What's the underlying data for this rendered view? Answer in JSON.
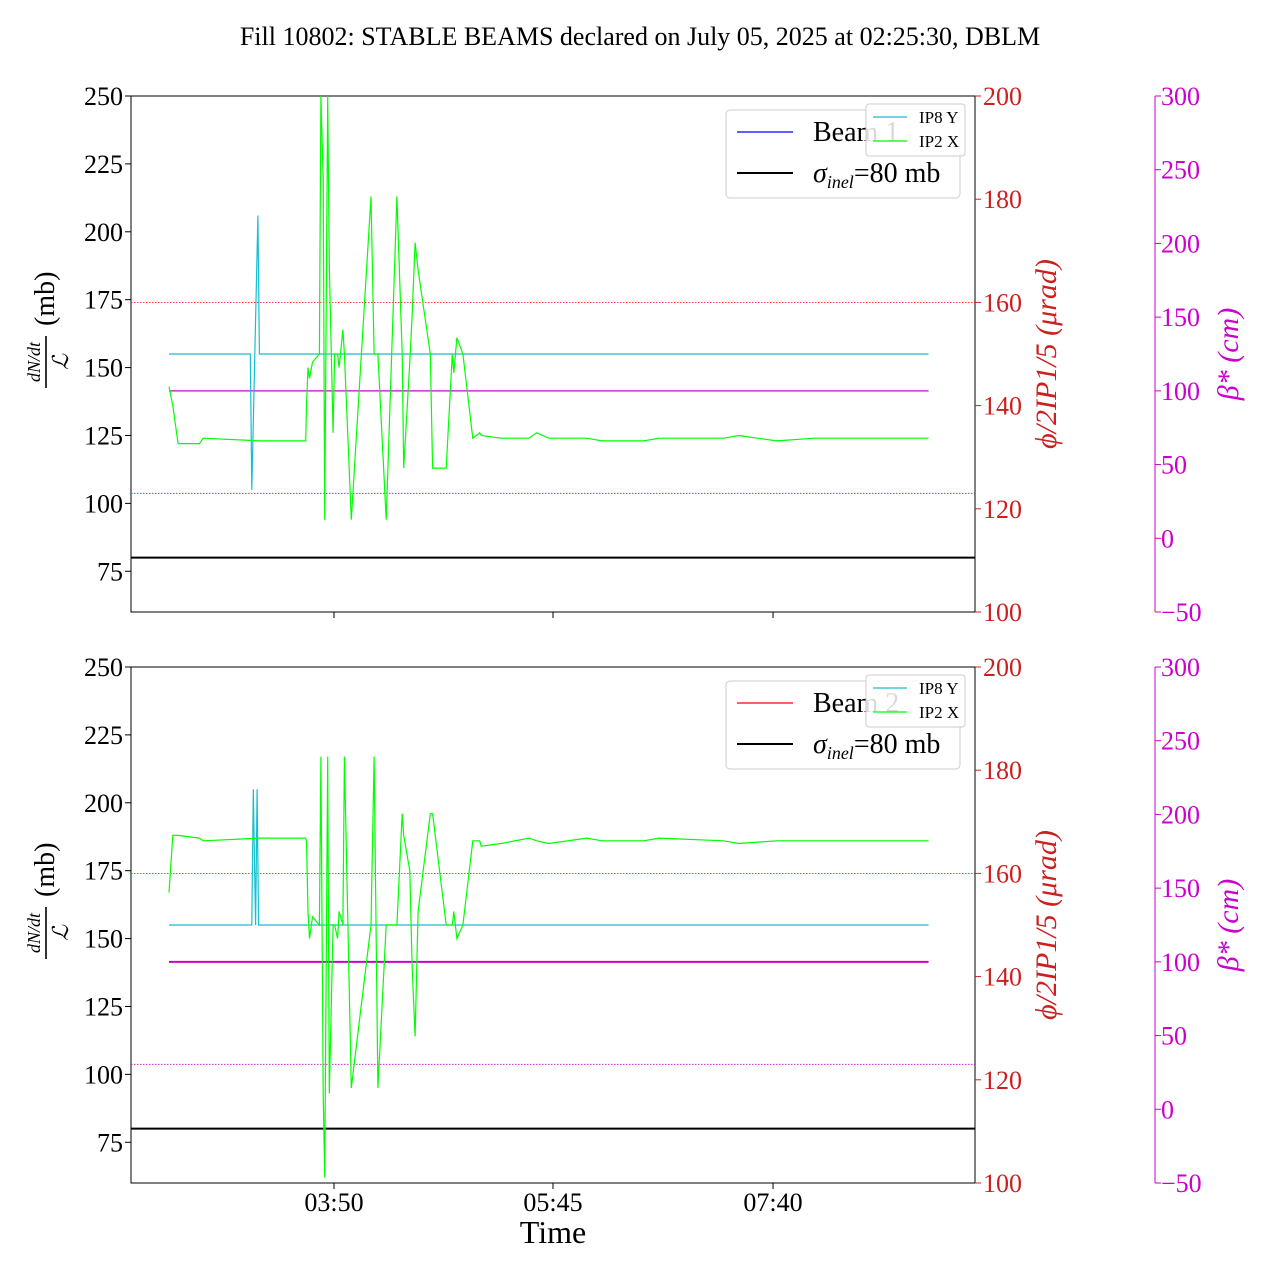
{
  "title": "Fill 10802: STABLE BEAMS declared on July 05, 2025 at 02:25:30, DBLM",
  "colors": {
    "ip8": "#17becf",
    "ip2": "#00ff00",
    "beam1": "#0000ff",
    "beam2": "#ff0000",
    "sigma": "#000000",
    "phi_axis": "#cc1f1f",
    "beta_axis": "#cc00cc",
    "beta_line": "#cc00cc"
  },
  "chart_data": [
    {
      "type": "line",
      "panel": "top",
      "xlabel": "",
      "ylabel": "dN/dt / L (mb)",
      "ylim": [
        60,
        250
      ],
      "yticks": [
        75,
        100,
        125,
        150,
        175,
        200,
        225,
        250
      ],
      "y2label": "φ/2 IP1/5 (μrad)",
      "y2lim": [
        100,
        200
      ],
      "y2ticks": [
        100,
        120,
        140,
        160,
        180,
        200
      ],
      "y3label": "β* (cm)",
      "y3lim": [
        -50,
        300
      ],
      "y3ticks": [
        -50,
        0,
        50,
        100,
        150,
        200,
        250,
        300
      ],
      "xticks": [
        "03:50",
        "05:45",
        "07:40"
      ],
      "legend_main": [
        {
          "name": "Beam 1",
          "color": "#0000ff"
        },
        {
          "name": "σinel=80 mb",
          "color": "#000000"
        }
      ],
      "legend_small": [
        {
          "name": "IP8 Y",
          "color": "#17becf"
        },
        {
          "name": "IP2 X",
          "color": "#00ff00"
        }
      ],
      "sigma_inel_mb": 80,
      "phi_reference_urad": [
        160,
        123
      ],
      "beta_star_cm": 100,
      "series": [
        {
          "name": "IP8 Y",
          "axis": "y",
          "x": [
            0,
            0.107,
            0.109,
            0.117,
            0.119,
            1.0
          ],
          "y": [
            155,
            155,
            105,
            206,
            155,
            155
          ]
        },
        {
          "name": "IP2 X",
          "axis": "y",
          "x": [
            0,
            0.005,
            0.012,
            0.04,
            0.045,
            0.12,
            0.18,
            0.181,
            0.183,
            0.185,
            0.189,
            0.198,
            0.2,
            0.203,
            0.205,
            0.209,
            0.211,
            0.216,
            0.218,
            0.222,
            0.224,
            0.229,
            0.231,
            0.24,
            0.266,
            0.27,
            0.275,
            0.286,
            0.3,
            0.307,
            0.309,
            0.317,
            0.32,
            0.324,
            0.328,
            0.344,
            0.347,
            0.365,
            0.373,
            0.375,
            0.379,
            0.387,
            0.4,
            0.409,
            0.411,
            0.437,
            0.474,
            0.484,
            0.5,
            0.55,
            0.57,
            0.625,
            0.645,
            0.73,
            0.75,
            0.8,
            0.85,
            1.0
          ],
          "y": [
            143,
            136,
            122,
            122,
            124,
            123,
            123,
            136,
            150,
            146,
            152,
            155,
            250,
            219,
            94,
            250,
            188,
            126,
            155,
            155,
            150,
            164,
            155,
            94,
            213,
            155,
            155,
            94,
            213,
            155,
            113,
            152,
            169,
            196,
            186,
            155,
            113,
            113,
            155,
            148,
            161,
            155,
            124,
            126,
            125,
            124,
            124,
            126,
            124,
            124,
            123,
            123,
            124,
            124,
            125,
            123,
            124,
            124
          ]
        }
      ]
    },
    {
      "type": "line",
      "panel": "bottom",
      "xlabel": "Time",
      "ylabel": "dN/dt / L (mb)",
      "ylim": [
        60,
        250
      ],
      "yticks": [
        75,
        100,
        125,
        150,
        175,
        200,
        225,
        250
      ],
      "y2label": "φ/2 IP1/5 (μrad)",
      "y2lim": [
        100,
        200
      ],
      "y2ticks": [
        100,
        120,
        140,
        160,
        180,
        200
      ],
      "y3label": "β* (cm)",
      "y3lim": [
        -50,
        300
      ],
      "y3ticks": [
        -50,
        0,
        50,
        100,
        150,
        200,
        250,
        300
      ],
      "xticks": [
        "03:50",
        "05:45",
        "07:40"
      ],
      "legend_main": [
        {
          "name": "Beam 2",
          "color": "#ff0000"
        },
        {
          "name": "σinel=80 mb",
          "color": "#000000"
        }
      ],
      "legend_small": [
        {
          "name": "IP8 Y",
          "color": "#17becf"
        },
        {
          "name": "IP2 X",
          "color": "#00ff00"
        }
      ],
      "sigma_inel_mb": 80,
      "phi_reference_urad": [
        160,
        123
      ],
      "beta_star_cm": 100,
      "series": [
        {
          "name": "IP8 Y",
          "axis": "y",
          "x": [
            0,
            0.109,
            0.111,
            0.114,
            0.116,
            0.118,
            1.0
          ],
          "y": [
            155,
            155,
            205,
            155,
            205,
            155,
            155
          ]
        },
        {
          "name": "IP2 X",
          "axis": "y",
          "x": [
            0,
            0.005,
            0.012,
            0.04,
            0.045,
            0.12,
            0.18,
            0.181,
            0.183,
            0.185,
            0.189,
            0.198,
            0.2,
            0.203,
            0.205,
            0.209,
            0.211,
            0.216,
            0.218,
            0.222,
            0.224,
            0.229,
            0.231,
            0.24,
            0.266,
            0.27,
            0.275,
            0.286,
            0.3,
            0.307,
            0.309,
            0.317,
            0.32,
            0.324,
            0.328,
            0.344,
            0.347,
            0.365,
            0.373,
            0.375,
            0.379,
            0.387,
            0.4,
            0.409,
            0.411,
            0.437,
            0.474,
            0.484,
            0.5,
            0.55,
            0.57,
            0.625,
            0.645,
            0.73,
            0.75,
            0.8,
            0.85,
            1.0
          ],
          "y": [
            167,
            188,
            188,
            187,
            186,
            187,
            187,
            186,
            160,
            150,
            158,
            155,
            217,
            93,
            62,
            217,
            93,
            155,
            155,
            150,
            160,
            155,
            217,
            95,
            155,
            217,
            95,
            155,
            155,
            196,
            188,
            175,
            140,
            114,
            160,
            196,
            196,
            155,
            155,
            160,
            150,
            155,
            186,
            186,
            184,
            185,
            187,
            186,
            185,
            187,
            186,
            186,
            187,
            186,
            185,
            186,
            186,
            186
          ]
        }
      ]
    }
  ]
}
